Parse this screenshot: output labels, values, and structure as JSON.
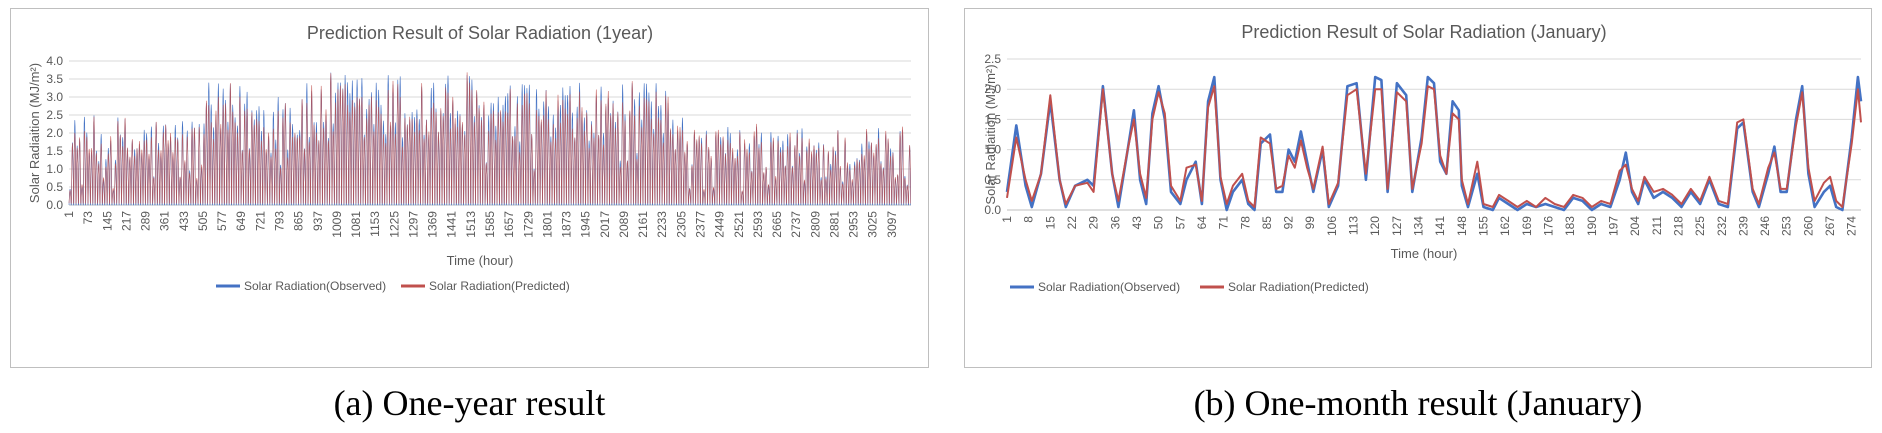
{
  "captions": {
    "a": "(a) One-year result",
    "b": "(b) One-month result (January)"
  },
  "colors": {
    "observed": "#4472c4",
    "predicted": "#c0504d",
    "grid": "#d9d9d9",
    "text": "#595959"
  },
  "chart_data": [
    {
      "id": "a",
      "type": "line",
      "title": "Prediction Result of Solar Radiation (1year)",
      "xlabel": "Time (hour)",
      "ylabel": "Solar Radiaition (MJ/m²)",
      "ylim": [
        0,
        4
      ],
      "xlim": [
        1,
        3169
      ],
      "yticks": [
        "0.0",
        "0.5",
        "1.0",
        "1.5",
        "2.0",
        "2.5",
        "3.0",
        "3.5",
        "4.0"
      ],
      "ytick_values": [
        0,
        0.5,
        1,
        1.5,
        2,
        2.5,
        3,
        3.5,
        4
      ],
      "xticks": [
        "1",
        "73",
        "145",
        "217",
        "289",
        "361",
        "433",
        "505",
        "577",
        "649",
        "721",
        "793",
        "865",
        "937",
        "1009",
        "1081",
        "1153",
        "1225",
        "1297",
        "1369",
        "1441",
        "1513",
        "1585",
        "1657",
        "1729",
        "1801",
        "1873",
        "1945",
        "2017",
        "2089",
        "2161",
        "2233",
        "2305",
        "2377",
        "2449",
        "2521",
        "2593",
        "2665",
        "2737",
        "2809",
        "2881",
        "2953",
        "3025",
        "3097"
      ],
      "xtick_values": [
        1,
        73,
        145,
        217,
        289,
        361,
        433,
        505,
        577,
        649,
        721,
        793,
        865,
        937,
        1009,
        1081,
        1153,
        1225,
        1297,
        1369,
        1441,
        1513,
        1585,
        1657,
        1729,
        1801,
        1873,
        1945,
        2017,
        2089,
        2161,
        2233,
        2305,
        2377,
        2449,
        2521,
        2593,
        2665,
        2737,
        2809,
        2881,
        2953,
        3025,
        3097
      ],
      "grid": true,
      "legend_position": "bottom",
      "series": [
        {
          "name": "Solar Radiation(Observed)",
          "color": "#4472c4"
        },
        {
          "name": "Solar Radiation(Predicted)",
          "color": "#c0504d"
        }
      ],
      "daily_peaks": [
        {
          "x_start": 1,
          "x_end": 500,
          "peak_min": 0.3,
          "peak_max": 2.5
        },
        {
          "x_start": 500,
          "x_end": 940,
          "peak_min": 1.0,
          "peak_max": 3.4
        },
        {
          "x_start": 940,
          "x_end": 1520,
          "peak_min": 1.2,
          "peak_max": 3.7
        },
        {
          "x_start": 1520,
          "x_end": 2320,
          "peak_min": 1.0,
          "peak_max": 3.4
        },
        {
          "x_start": 2320,
          "x_end": 3169,
          "peak_min": 0.3,
          "peak_max": 2.2
        }
      ]
    },
    {
      "id": "b",
      "type": "line",
      "title": "Prediction Result of Solar Radiation (January)",
      "xlabel": "Time (hour)",
      "ylabel": "Solar Radiaition (MJ/m²)",
      "ylim": [
        0,
        2.5
      ],
      "xlim": [
        1,
        277
      ],
      "yticks": [
        "0.0",
        "0.5",
        "1.0",
        "1.5",
        "2.0",
        "2.5"
      ],
      "ytick_values": [
        0,
        0.5,
        1,
        1.5,
        2,
        2.5
      ],
      "xticks": [
        "1",
        "8",
        "15",
        "22",
        "29",
        "36",
        "43",
        "50",
        "57",
        "64",
        "71",
        "78",
        "85",
        "92",
        "99",
        "106",
        "113",
        "120",
        "127",
        "134",
        "141",
        "148",
        "155",
        "162",
        "169",
        "176",
        "183",
        "190",
        "197",
        "204",
        "211",
        "218",
        "225",
        "232",
        "239",
        "246",
        "253",
        "260",
        "267",
        "274"
      ],
      "xtick_values": [
        1,
        8,
        15,
        22,
        29,
        36,
        43,
        50,
        57,
        64,
        71,
        78,
        85,
        92,
        99,
        106,
        113,
        120,
        127,
        134,
        141,
        148,
        155,
        162,
        169,
        176,
        183,
        190,
        197,
        204,
        211,
        218,
        225,
        232,
        239,
        246,
        253,
        260,
        267,
        274
      ],
      "grid": true,
      "legend_position": "bottom",
      "series": [
        {
          "name": "Solar Radiation(Observed)",
          "color": "#4472c4",
          "points": [
            [
              1,
              0.3
            ],
            [
              4,
              1.4
            ],
            [
              7,
              0.4
            ],
            [
              9,
              0.05
            ],
            [
              12,
              0.6
            ],
            [
              15,
              1.8
            ],
            [
              18,
              0.5
            ],
            [
              20,
              0.05
            ],
            [
              23,
              0.4
            ],
            [
              27,
              0.5
            ],
            [
              29,
              0.4
            ],
            [
              32,
              2.05
            ],
            [
              35,
              0.6
            ],
            [
              37,
              0.05
            ],
            [
              40,
              1.0
            ],
            [
              42,
              1.65
            ],
            [
              44,
              0.5
            ],
            [
              46,
              0.1
            ],
            [
              48,
              1.6
            ],
            [
              50,
              2.05
            ],
            [
              52,
              1.5
            ],
            [
              54,
              0.3
            ],
            [
              57,
              0.1
            ],
            [
              59,
              0.5
            ],
            [
              62,
              0.8
            ],
            [
              64,
              0.1
            ],
            [
              66,
              1.8
            ],
            [
              68,
              2.2
            ],
            [
              70,
              0.5
            ],
            [
              72,
              0.0
            ],
            [
              74,
              0.3
            ],
            [
              77,
              0.5
            ],
            [
              79,
              0.1
            ],
            [
              81,
              0.0
            ],
            [
              83,
              1.1
            ],
            [
              86,
              1.25
            ],
            [
              88,
              0.3
            ],
            [
              90,
              0.3
            ],
            [
              92,
              1.0
            ],
            [
              94,
              0.8
            ],
            [
              96,
              1.3
            ],
            [
              98,
              0.8
            ],
            [
              100,
              0.3
            ],
            [
              103,
              1.0
            ],
            [
              105,
              0.05
            ],
            [
              108,
              0.4
            ],
            [
              111,
              2.05
            ],
            [
              114,
              2.1
            ],
            [
              117,
              0.5
            ],
            [
              120,
              2.2
            ],
            [
              122,
              2.15
            ],
            [
              124,
              0.3
            ],
            [
              127,
              2.1
            ],
            [
              130,
              1.9
            ],
            [
              132,
              0.3
            ],
            [
              135,
              1.2
            ],
            [
              137,
              2.2
            ],
            [
              139,
              2.1
            ],
            [
              141,
              0.8
            ],
            [
              143,
              0.6
            ],
            [
              145,
              1.8
            ],
            [
              147,
              1.65
            ],
            [
              148,
              0.4
            ],
            [
              150,
              0.05
            ],
            [
              153,
              0.6
            ],
            [
              155,
              0.05
            ],
            [
              158,
              0.0
            ],
            [
              160,
              0.2
            ],
            [
              163,
              0.1
            ],
            [
              166,
              0.0
            ],
            [
              169,
              0.1
            ],
            [
              172,
              0.05
            ],
            [
              175,
              0.1
            ],
            [
              178,
              0.05
            ],
            [
              181,
              0.0
            ],
            [
              184,
              0.2
            ],
            [
              187,
              0.15
            ],
            [
              190,
              0.0
            ],
            [
              193,
              0.1
            ],
            [
              196,
              0.05
            ],
            [
              199,
              0.5
            ],
            [
              201,
              0.95
            ],
            [
              203,
              0.3
            ],
            [
              205,
              0.1
            ],
            [
              207,
              0.5
            ],
            [
              210,
              0.2
            ],
            [
              213,
              0.3
            ],
            [
              216,
              0.2
            ],
            [
              219,
              0.05
            ],
            [
              222,
              0.3
            ],
            [
              225,
              0.1
            ],
            [
              228,
              0.5
            ],
            [
              231,
              0.1
            ],
            [
              234,
              0.05
            ],
            [
              237,
              1.35
            ],
            [
              239,
              1.45
            ],
            [
              242,
              0.3
            ],
            [
              244,
              0.05
            ],
            [
              247,
              0.6
            ],
            [
              249,
              1.05
            ],
            [
              251,
              0.3
            ],
            [
              253,
              0.3
            ],
            [
              256,
              1.5
            ],
            [
              258,
              2.05
            ],
            [
              260,
              0.6
            ],
            [
              262,
              0.05
            ],
            [
              265,
              0.3
            ],
            [
              267,
              0.4
            ],
            [
              269,
              0.05
            ],
            [
              271,
              0.0
            ],
            [
              274,
              1.2
            ],
            [
              276,
              2.2
            ],
            [
              277,
              1.8
            ]
          ]
        },
        {
          "name": "Solar Radiation(Predicted)",
          "color": "#c0504d",
          "points": [
            [
              1,
              0.2
            ],
            [
              4,
              1.2
            ],
            [
              7,
              0.5
            ],
            [
              9,
              0.15
            ],
            [
              12,
              0.6
            ],
            [
              15,
              1.9
            ],
            [
              18,
              0.5
            ],
            [
              20,
              0.1
            ],
            [
              23,
              0.4
            ],
            [
              27,
              0.45
            ],
            [
              29,
              0.3
            ],
            [
              32,
              2.0
            ],
            [
              35,
              0.6
            ],
            [
              37,
              0.15
            ],
            [
              40,
              1.0
            ],
            [
              42,
              1.5
            ],
            [
              44,
              0.6
            ],
            [
              46,
              0.2
            ],
            [
              48,
              1.5
            ],
            [
              50,
              1.95
            ],
            [
              52,
              1.6
            ],
            [
              54,
              0.4
            ],
            [
              57,
              0.15
            ],
            [
              59,
              0.7
            ],
            [
              62,
              0.75
            ],
            [
              64,
              0.15
            ],
            [
              66,
              1.7
            ],
            [
              68,
              2.05
            ],
            [
              70,
              0.55
            ],
            [
              72,
              0.1
            ],
            [
              74,
              0.4
            ],
            [
              77,
              0.6
            ],
            [
              79,
              0.15
            ],
            [
              81,
              0.05
            ],
            [
              83,
              1.2
            ],
            [
              86,
              1.1
            ],
            [
              88,
              0.35
            ],
            [
              90,
              0.4
            ],
            [
              92,
              0.9
            ],
            [
              94,
              0.7
            ],
            [
              96,
              1.15
            ],
            [
              98,
              0.7
            ],
            [
              100,
              0.35
            ],
            [
              103,
              1.05
            ],
            [
              105,
              0.1
            ],
            [
              108,
              0.45
            ],
            [
              111,
              1.9
            ],
            [
              114,
              2.0
            ],
            [
              117,
              0.6
            ],
            [
              120,
              2.0
            ],
            [
              122,
              2.0
            ],
            [
              124,
              0.35
            ],
            [
              127,
              1.95
            ],
            [
              130,
              1.8
            ],
            [
              132,
              0.35
            ],
            [
              135,
              1.1
            ],
            [
              137,
              2.05
            ],
            [
              139,
              2.0
            ],
            [
              141,
              0.9
            ],
            [
              143,
              0.6
            ],
            [
              145,
              1.6
            ],
            [
              147,
              1.5
            ],
            [
              148,
              0.5
            ],
            [
              150,
              0.1
            ],
            [
              153,
              0.8
            ],
            [
              155,
              0.1
            ],
            [
              158,
              0.05
            ],
            [
              160,
              0.25
            ],
            [
              163,
              0.15
            ],
            [
              166,
              0.05
            ],
            [
              169,
              0.15
            ],
            [
              172,
              0.05
            ],
            [
              175,
              0.2
            ],
            [
              178,
              0.1
            ],
            [
              181,
              0.05
            ],
            [
              184,
              0.25
            ],
            [
              187,
              0.2
            ],
            [
              190,
              0.05
            ],
            [
              193,
              0.15
            ],
            [
              196,
              0.1
            ],
            [
              199,
              0.65
            ],
            [
              201,
              0.75
            ],
            [
              203,
              0.35
            ],
            [
              205,
              0.15
            ],
            [
              207,
              0.55
            ],
            [
              210,
              0.3
            ],
            [
              213,
              0.35
            ],
            [
              216,
              0.25
            ],
            [
              219,
              0.1
            ],
            [
              222,
              0.35
            ],
            [
              225,
              0.15
            ],
            [
              228,
              0.55
            ],
            [
              231,
              0.15
            ],
            [
              234,
              0.1
            ],
            [
              237,
              1.45
            ],
            [
              239,
              1.5
            ],
            [
              242,
              0.35
            ],
            [
              244,
              0.1
            ],
            [
              247,
              0.7
            ],
            [
              249,
              0.95
            ],
            [
              251,
              0.35
            ],
            [
              253,
              0.35
            ],
            [
              256,
              1.4
            ],
            [
              258,
              1.95
            ],
            [
              260,
              0.7
            ],
            [
              262,
              0.15
            ],
            [
              265,
              0.45
            ],
            [
              267,
              0.55
            ],
            [
              269,
              0.15
            ],
            [
              271,
              0.05
            ],
            [
              274,
              1.1
            ],
            [
              276,
              2.0
            ],
            [
              277,
              1.45
            ]
          ]
        }
      ]
    }
  ]
}
